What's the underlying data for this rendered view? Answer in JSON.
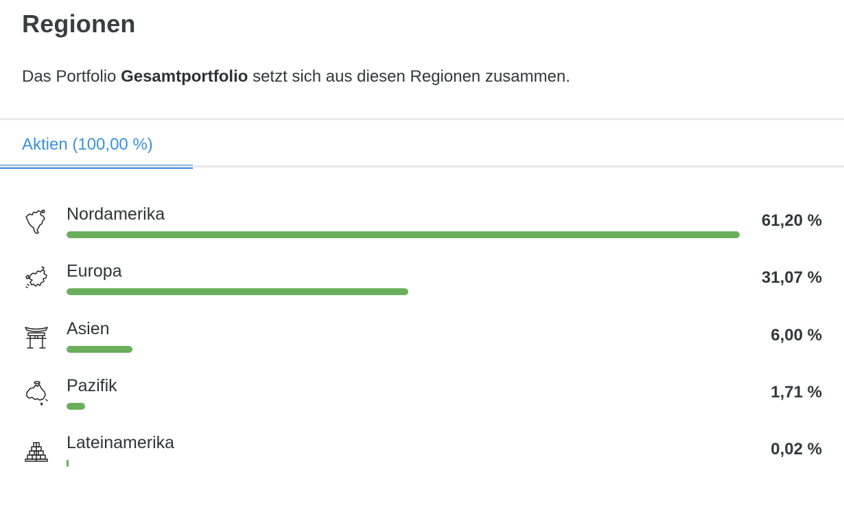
{
  "header": {
    "title": "Regionen",
    "intro_prefix": "Das Portfolio ",
    "intro_bold": "Gesamtportfolio",
    "intro_suffix": " setzt sich aus diesen Regionen zusammen."
  },
  "tabs": [
    {
      "label": "Aktien (100,00 %)",
      "active": true
    }
  ],
  "colors": {
    "accent": "#3b8fdf",
    "bar": "#6aaf5c",
    "divider": "#e7e8ea"
  },
  "regions": [
    {
      "name": "Nordamerika",
      "value_label": "61,20 %",
      "share": 61.2,
      "icon": "north-america-map-icon"
    },
    {
      "name": "Europa",
      "value_label": "31,07 %",
      "share": 31.07,
      "icon": "europe-map-icon"
    },
    {
      "name": "Asien",
      "value_label": "6,00 %",
      "share": 6.0,
      "icon": "asian-gate-icon"
    },
    {
      "name": "Pazifik",
      "value_label": "1,71 %",
      "share": 1.71,
      "icon": "australia-map-icon"
    },
    {
      "name": "Lateinamerika",
      "value_label": "0,02 %",
      "share": 0.02,
      "icon": "pyramid-icon"
    }
  ]
}
